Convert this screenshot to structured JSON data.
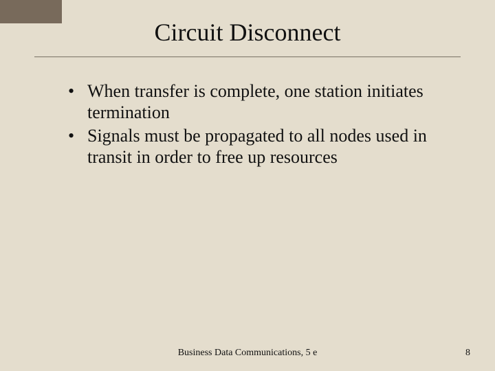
{
  "slide": {
    "title": "Circuit Disconnect",
    "bullets": [
      "When transfer is complete, one station initiates termination",
      "Signals must be propagated to all nodes used in transit in order to free up resources"
    ],
    "footer_source": "Business Data Communications, 5 e",
    "page_number": "8"
  },
  "style": {
    "background_color": "#e4ddcd",
    "accent_color": "#786a5b",
    "title_fontsize": 36,
    "body_fontsize": 26,
    "footer_fontsize": 14,
    "font_family": "Times New Roman"
  }
}
